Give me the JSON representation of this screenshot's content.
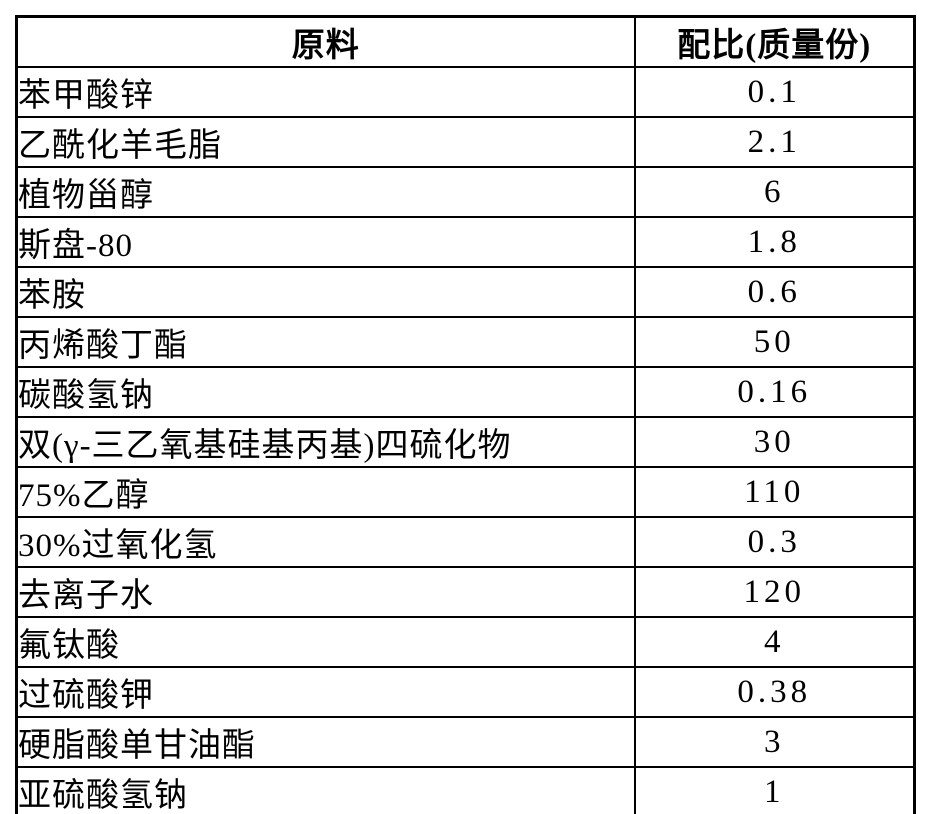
{
  "table": {
    "headers": {
      "material": "原料",
      "ratio": "配比(质量份)"
    },
    "rows": [
      {
        "material": "苯甲酸锌",
        "ratio": "0.1"
      },
      {
        "material": "乙酰化羊毛脂",
        "ratio": "2.1"
      },
      {
        "material": "植物甾醇",
        "ratio": "6"
      },
      {
        "material": "斯盘-80",
        "ratio": "1.8"
      },
      {
        "material": "苯胺",
        "ratio": "0.6"
      },
      {
        "material": "丙烯酸丁酯",
        "ratio": "50"
      },
      {
        "material": "碳酸氢钠",
        "ratio": "0.16"
      },
      {
        "material": "双(γ-三乙氧基硅基丙基)四硫化物",
        "ratio": "30"
      },
      {
        "material": "75%乙醇",
        "ratio": "110"
      },
      {
        "material": "30%过氧化氢",
        "ratio": "0.3"
      },
      {
        "material": "去离子水",
        "ratio": "120"
      },
      {
        "material": "氟钛酸",
        "ratio": "4"
      },
      {
        "material": "过硫酸钾",
        "ratio": "0.38"
      },
      {
        "material": "硬脂酸单甘油酯",
        "ratio": "3"
      },
      {
        "material": "亚硫酸氢钠",
        "ratio": "1"
      }
    ]
  }
}
